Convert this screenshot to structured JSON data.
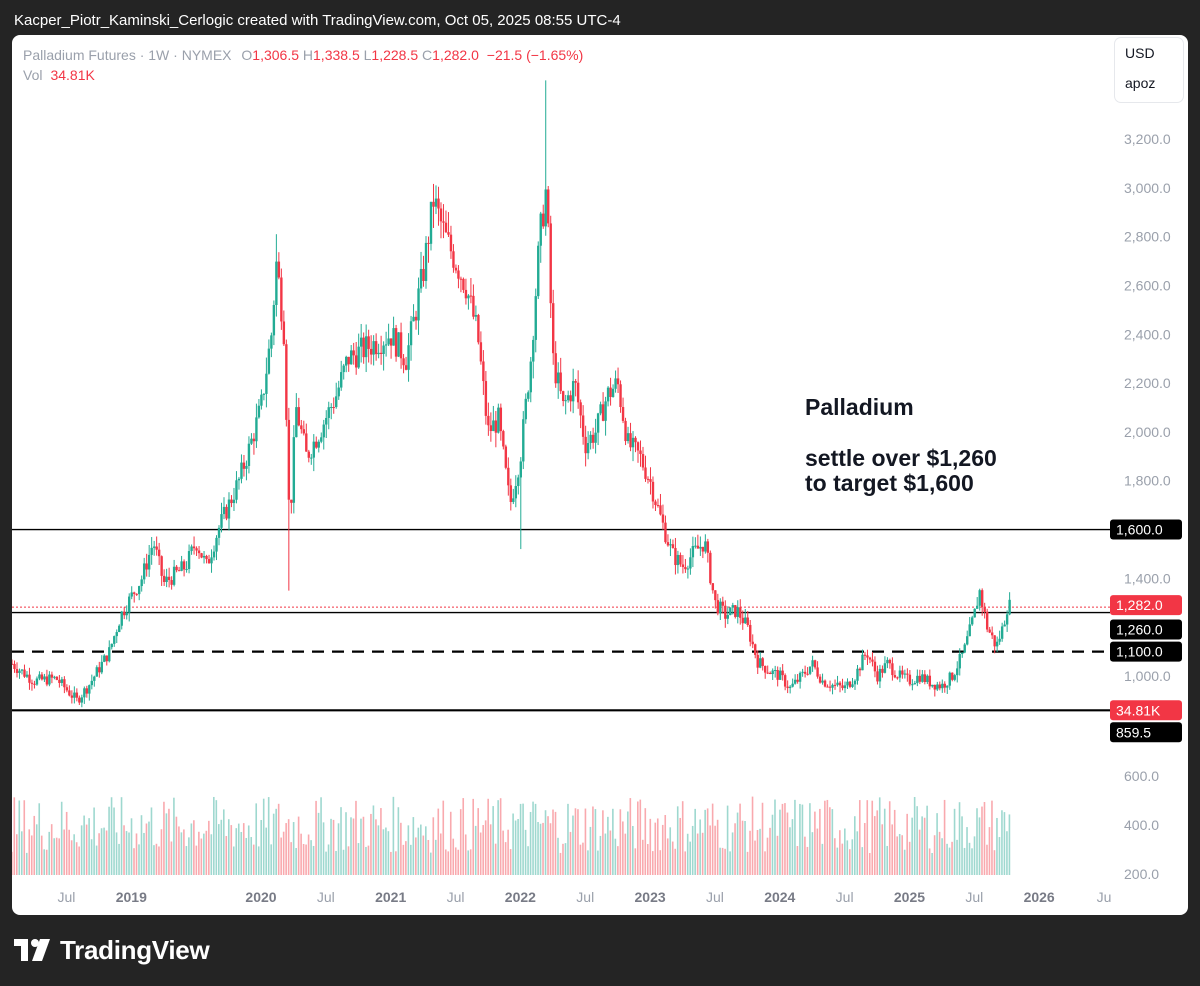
{
  "header": {
    "attribution": "Kacper_Piotr_Kaminski_Cerlogic created with TradingView.com, Oct 05, 2025 08:55 UTC-4"
  },
  "legend": {
    "symbol": "Palladium Futures · 1W · NYMEX",
    "open_label": "O",
    "open": "1,306.5",
    "high_label": "H",
    "high": "1,338.5",
    "low_label": "L",
    "low": "1,228.5",
    "close_label": "C",
    "close": "1,282.0",
    "change": "−21.5 (−1.65%)",
    "vol_label": "Vol",
    "vol": "34.81K"
  },
  "currency_box": {
    "currency": "USD",
    "mode": "apoz"
  },
  "footer": {
    "brand": "TradingView"
  },
  "colors": {
    "up": "#22ab94",
    "down": "#f23645",
    "up_volume": "#9ed8cf",
    "down_volume": "#f9a9ae",
    "grid_text": "#9aa0ab",
    "line": "#000000",
    "price_tag": "#f23645"
  },
  "chart_data": {
    "type": "candlestick",
    "timeframe": "1W",
    "title": "Palladium Futures · 1W · NYMEX",
    "ylim": [
      200,
      3500
    ],
    "y_axis_ticks": [
      "3,200.0",
      "3,000.0",
      "2,800.0",
      "2,600.0",
      "2,400.0",
      "2,200.0",
      "2,000.0",
      "1,800.0",
      "1,600.0",
      "1,400.0",
      "1,200.0",
      "1,000.0",
      "600.0",
      "400.0",
      "200.0"
    ],
    "y_axis_tick_values": [
      3200,
      3000,
      2800,
      2600,
      2400,
      2200,
      2000,
      1800,
      1600,
      1400,
      1200,
      1000,
      600,
      400,
      200
    ],
    "x_axis_ticks": [
      {
        "label": "Jul",
        "t": 2018.5,
        "bold": false
      },
      {
        "label": "2019",
        "t": 2019.0,
        "bold": true
      },
      {
        "label": "2020",
        "t": 2020.0,
        "bold": true
      },
      {
        "label": "Jul",
        "t": 2020.5,
        "bold": false
      },
      {
        "label": "2021",
        "t": 2021.0,
        "bold": true
      },
      {
        "label": "Jul",
        "t": 2021.5,
        "bold": false
      },
      {
        "label": "2022",
        "t": 2022.0,
        "bold": true
      },
      {
        "label": "Jul",
        "t": 2022.5,
        "bold": false
      },
      {
        "label": "2023",
        "t": 2023.0,
        "bold": true
      },
      {
        "label": "Jul",
        "t": 2023.5,
        "bold": false
      },
      {
        "label": "2024",
        "t": 2024.0,
        "bold": true
      },
      {
        "label": "Jul",
        "t": 2024.5,
        "bold": false
      },
      {
        "label": "2025",
        "t": 2025.0,
        "bold": true
      },
      {
        "label": "Jul",
        "t": 2025.5,
        "bold": false
      },
      {
        "label": "2026",
        "t": 2026.0,
        "bold": true
      },
      {
        "label": "Ju",
        "t": 2026.5,
        "bold": false
      }
    ],
    "x_range": [
      2018.08,
      2026.5
    ],
    "price_path": [
      [
        2018.08,
        1050
      ],
      [
        2018.25,
        980
      ],
      [
        2018.42,
        990
      ],
      [
        2018.58,
        900
      ],
      [
        2018.67,
        960
      ],
      [
        2018.83,
        1100
      ],
      [
        2018.92,
        1250
      ],
      [
        2019.08,
        1400
      ],
      [
        2019.17,
        1550
      ],
      [
        2019.25,
        1380
      ],
      [
        2019.42,
        1450
      ],
      [
        2019.5,
        1550
      ],
      [
        2019.58,
        1450
      ],
      [
        2019.67,
        1600
      ],
      [
        2019.75,
        1700
      ],
      [
        2019.83,
        1800
      ],
      [
        2019.92,
        1950
      ],
      [
        2020.0,
        2100
      ],
      [
        2020.08,
        2400
      ],
      [
        2020.12,
        2700
      ],
      [
        2020.18,
        2400
      ],
      [
        2020.22,
        1600
      ],
      [
        2020.27,
        2100
      ],
      [
        2020.35,
        1900
      ],
      [
        2020.45,
        2000
      ],
      [
        2020.58,
        2150
      ],
      [
        2020.67,
        2300
      ],
      [
        2020.83,
        2350
      ],
      [
        2021.0,
        2400
      ],
      [
        2021.12,
        2300
      ],
      [
        2021.25,
        2650
      ],
      [
        2021.33,
        2950
      ],
      [
        2021.42,
        2800
      ],
      [
        2021.5,
        2700
      ],
      [
        2021.58,
        2600
      ],
      [
        2021.67,
        2400
      ],
      [
        2021.75,
        2000
      ],
      [
        2021.83,
        2050
      ],
      [
        2021.92,
        1700
      ],
      [
        2022.0,
        1900
      ],
      [
        2022.08,
        2300
      ],
      [
        2022.15,
        2800
      ],
      [
        2022.2,
        3000
      ],
      [
        2022.25,
        2300
      ],
      [
        2022.33,
        2100
      ],
      [
        2022.42,
        2200
      ],
      [
        2022.5,
        1950
      ],
      [
        2022.58,
        2000
      ],
      [
        2022.67,
        2150
      ],
      [
        2022.75,
        2200
      ],
      [
        2022.83,
        1950
      ],
      [
        2022.92,
        1900
      ],
      [
        2023.0,
        1800
      ],
      [
        2023.08,
        1650
      ],
      [
        2023.17,
        1500
      ],
      [
        2023.25,
        1450
      ],
      [
        2023.33,
        1500
      ],
      [
        2023.42,
        1550
      ],
      [
        2023.5,
        1300
      ],
      [
        2023.58,
        1250
      ],
      [
        2023.67,
        1270
      ],
      [
        2023.75,
        1200
      ],
      [
        2023.83,
        1060
      ],
      [
        2023.92,
        1020
      ],
      [
        2024.0,
        1000
      ],
      [
        2024.08,
        950
      ],
      [
        2024.17,
        1000
      ],
      [
        2024.25,
        1050
      ],
      [
        2024.33,
        980
      ],
      [
        2024.42,
        960
      ],
      [
        2024.5,
        950
      ],
      [
        2024.58,
        1000
      ],
      [
        2024.67,
        1100
      ],
      [
        2024.75,
        1000
      ],
      [
        2024.83,
        1050
      ],
      [
        2024.92,
        1000
      ],
      [
        2025.0,
        980
      ],
      [
        2025.08,
        1000
      ],
      [
        2025.17,
        970
      ],
      [
        2025.25,
        960
      ],
      [
        2025.33,
        1000
      ],
      [
        2025.42,
        1100
      ],
      [
        2025.5,
        1250
      ],
      [
        2025.54,
        1350
      ],
      [
        2025.6,
        1200
      ],
      [
        2025.67,
        1120
      ],
      [
        2025.72,
        1200
      ],
      [
        2025.76,
        1300
      ],
      [
        2025.78,
        1282
      ]
    ],
    "price_extremes": [
      {
        "t": 2020.12,
        "high": 2810
      },
      {
        "t": 2020.22,
        "low": 1350
      },
      {
        "t": 2021.35,
        "high": 3010
      },
      {
        "t": 2022.2,
        "high": 3440
      },
      {
        "t": 2022.0,
        "low": 1520
      }
    ],
    "horizontal_lines": [
      {
        "value": 1600,
        "label": "1,600.0",
        "style": "solid",
        "tag": "dark"
      },
      {
        "value": 1260,
        "label": "1,260.0",
        "style": "solid",
        "tag": "dark"
      },
      {
        "value": 1100,
        "label": "1,100.0",
        "style": "dashed",
        "tag": "dark"
      },
      {
        "value": 859.5,
        "label": "859.5",
        "style": "solid",
        "tag": "dark"
      },
      {
        "value": 1282,
        "label": "1,282.0",
        "style": "dotted",
        "tag": "red"
      }
    ],
    "volume_tag": {
      "label": "34.81K"
    },
    "volume": {
      "typical": 300,
      "peak": 860,
      "last": "34.81K"
    },
    "annotation": {
      "title": "Palladium",
      "line1": "settle over $1,260",
      "line2": "to target $1,600"
    },
    "last_price": 1282.0
  }
}
